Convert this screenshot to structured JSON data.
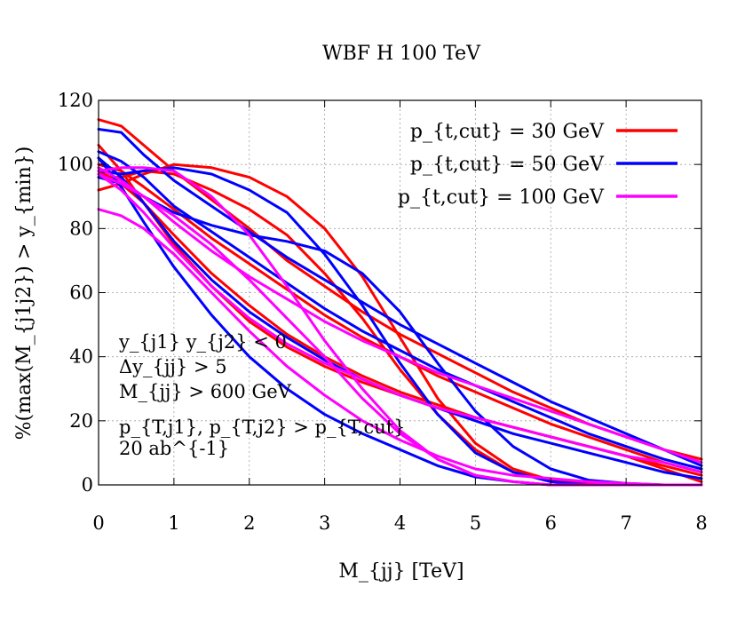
{
  "chart_data": {
    "type": "line",
    "title": "WBF H 100 TeV",
    "xlabel": "M_{jj} [TeV]",
    "ylabel": "%(max(M_{j1j2}) > y_{min})",
    "xlim": [
      0,
      8
    ],
    "ylim": [
      0,
      120
    ],
    "y_scale": "linear",
    "grid": true,
    "legend_position": "top-right",
    "x_ticks": [
      "0",
      "1",
      "2",
      "3",
      "4",
      "5",
      "6",
      "7",
      "8"
    ],
    "y_ticks": [
      "0",
      "20",
      "40",
      "60",
      "80",
      "100",
      "120"
    ],
    "annotations": [
      "y_{j1} y_{j2} < 0",
      "Δy_{jj} > 5",
      "M_{jj} > 600 GeV",
      "p_{T,j1}, p_{T,j2} > p_{T,cut}",
      "20 ab^{-1}"
    ],
    "colors": {
      "pt30": "#ff0000",
      "pt50": "#0000ff",
      "pt100": "#ff00ff"
    },
    "series": [
      {
        "name": "p_{t,cut} = 30 GeV",
        "color": "#ff0000",
        "x": [
          0,
          0.3,
          0.6,
          1,
          1.5,
          2,
          2.5,
          3,
          3.5,
          4,
          4.5,
          5,
          5.5,
          6,
          6.5,
          7,
          7.5,
          8
        ],
        "y": [
          114,
          112,
          106,
          98,
          89,
          80,
          70,
          62,
          54,
          47,
          41,
          35,
          29,
          24,
          19,
          15,
          11,
          8
        ]
      },
      {
        "name": "p_{t,cut} = 30 GeV",
        "color": "#ff0000",
        "x": [
          0,
          0.3,
          0.6,
          1,
          1.5,
          2,
          2.5,
          3,
          3.5,
          4,
          4.5,
          5,
          5.5,
          6,
          6.5,
          7,
          7.5,
          8
        ],
        "y": [
          100,
          98,
          93,
          86,
          77,
          69,
          61,
          53,
          46,
          40,
          34,
          29,
          24,
          19,
          15,
          11,
          7,
          4
        ]
      },
      {
        "name": "p_{t,cut} = 30 GeV",
        "color": "#ff0000",
        "x": [
          0,
          0.3,
          0.6,
          1,
          1.5,
          2,
          2.5,
          3,
          3.5,
          4,
          4.5,
          5,
          5.5,
          6,
          6.5,
          7,
          7.5,
          8
        ],
        "y": [
          98,
          94,
          88,
          78,
          66,
          56,
          47,
          40,
          34,
          29,
          25,
          21,
          18,
          15,
          12,
          9,
          6,
          3
        ]
      },
      {
        "name": "p_{t,cut} = 30 GeV",
        "color": "#ff0000",
        "x": [
          0,
          0.3,
          0.6,
          1,
          1.5,
          2,
          2.5,
          3,
          3.5,
          4,
          4.5,
          5,
          5.5,
          6,
          6.5,
          7,
          7.5,
          8
        ],
        "y": [
          106,
          98,
          88,
          75,
          62,
          51,
          43,
          37,
          32,
          28,
          24,
          21,
          18,
          15,
          12,
          9,
          5,
          1
        ]
      },
      {
        "name": "p_{t,cut} = 30 GeV",
        "color": "#ff0000",
        "x": [
          0,
          0.3,
          0.6,
          1,
          1.5,
          2,
          2.5,
          3,
          3.5,
          4,
          4.5,
          5,
          5.5,
          6,
          6.5,
          7,
          7.5,
          8
        ],
        "y": [
          92,
          94,
          97,
          100,
          99,
          96,
          90,
          80,
          65,
          46,
          27,
          13,
          5,
          1.5,
          0.5,
          0,
          0,
          0
        ]
      },
      {
        "name": "p_{t,cut} = 30 GeV",
        "color": "#ff0000",
        "x": [
          0,
          0.3,
          0.6,
          1,
          1.5,
          2,
          2.5,
          3,
          3.5,
          4,
          4.5,
          5,
          5.5,
          6,
          6.5,
          7,
          7.5,
          8
        ],
        "y": [
          96,
          96,
          98,
          97,
          92,
          86,
          78,
          66,
          52,
          36,
          22,
          11,
          4,
          1.5,
          0.5,
          0,
          0,
          0
        ]
      },
      {
        "name": "p_{t,cut} = 50 GeV",
        "color": "#0000ff",
        "x": [
          0,
          0.3,
          0.6,
          1,
          1.5,
          2,
          2.5,
          3,
          3.5,
          4,
          4.5,
          5,
          5.5,
          6,
          6.5,
          7,
          7.5,
          8
        ],
        "y": [
          111,
          110,
          103,
          95,
          87,
          79,
          71,
          64,
          57,
          50,
          44,
          38,
          32,
          26,
          21,
          16,
          11,
          6
        ]
      },
      {
        "name": "p_{t,cut} = 50 GeV",
        "color": "#0000ff",
        "x": [
          0,
          0.3,
          0.6,
          1,
          1.5,
          2,
          2.5,
          3,
          3.5,
          4,
          4.5,
          5,
          5.5,
          6,
          6.5,
          7,
          7.5,
          8
        ],
        "y": [
          104,
          101,
          96,
          87,
          79,
          71,
          63,
          55,
          48,
          42,
          36,
          31,
          26,
          21,
          16,
          12,
          8,
          5
        ]
      },
      {
        "name": "p_{t,cut} = 50 GeV",
        "color": "#0000ff",
        "x": [
          0,
          0.3,
          0.6,
          1,
          1.5,
          2,
          2.5,
          3,
          3.5,
          4,
          4.5,
          5,
          5.5,
          6,
          6.5,
          7,
          7.5,
          8
        ],
        "y": [
          102,
          96,
          88,
          76,
          64,
          54,
          46,
          39,
          33,
          28,
          24,
          20,
          16,
          13,
          10,
          7,
          4,
          2
        ]
      },
      {
        "name": "p_{t,cut} = 50 GeV",
        "color": "#0000ff",
        "x": [
          0,
          0.3,
          0.6,
          1,
          1.5,
          2,
          2.5,
          3,
          3.5,
          4,
          4.5,
          5,
          5.5,
          6,
          6.5,
          7,
          7.5,
          8
        ],
        "y": [
          96,
          94,
          90,
          85,
          81,
          78,
          76,
          73,
          66,
          54,
          38,
          23,
          12,
          5,
          1.5,
          0.5,
          0,
          0
        ]
      },
      {
        "name": "p_{t,cut} = 50 GeV",
        "color": "#0000ff",
        "x": [
          0,
          0.3,
          0.6,
          1,
          1.5,
          2,
          2.5,
          3,
          3.5,
          4,
          4.5,
          5,
          5.5,
          6,
          6.5,
          7,
          7.5,
          8
        ],
        "y": [
          102,
          93,
          82,
          68,
          53,
          40,
          30,
          22,
          16,
          11,
          6,
          2.5,
          1,
          0,
          0,
          0,
          0,
          0
        ]
      },
      {
        "name": "p_{t,cut} = 50 GeV",
        "color": "#0000ff",
        "x": [
          0,
          0.3,
          0.6,
          1,
          1.5,
          2,
          2.5,
          3,
          3.5,
          4,
          4.5,
          5,
          5.5,
          6,
          6.5,
          7,
          7.5,
          8
        ],
        "y": [
          98,
          97,
          98,
          99,
          97,
          92,
          85,
          72,
          56,
          38,
          22,
          10,
          4,
          1,
          0,
          0,
          0,
          0
        ]
      },
      {
        "name": "p_{t,cut} = 100 GeV",
        "color": "#ff00ff",
        "x": [
          0,
          0.3,
          0.6,
          1,
          1.5,
          2,
          2.5,
          3,
          3.5,
          4,
          4.5,
          5,
          5.5,
          6,
          6.5,
          7,
          7.5,
          8
        ],
        "y": [
          99,
          95,
          90,
          82,
          73,
          65,
          58,
          51,
          45,
          40,
          35,
          31,
          27,
          23,
          19,
          15,
          11,
          7
        ]
      },
      {
        "name": "p_{t,cut} = 100 GeV",
        "color": "#ff00ff",
        "x": [
          0,
          0.3,
          0.6,
          1,
          1.5,
          2,
          2.5,
          3,
          3.5,
          4,
          4.5,
          5,
          5.5,
          6,
          6.5,
          7,
          7.5,
          8
        ],
        "y": [
          97,
          92,
          85,
          74,
          62,
          52,
          44,
          38,
          33,
          28,
          24,
          21,
          18,
          15,
          12,
          9,
          7,
          4
        ]
      },
      {
        "name": "p_{t,cut} = 100 GeV",
        "color": "#ff00ff",
        "x": [
          0,
          0.3,
          0.6,
          1,
          1.5,
          2,
          2.5,
          3,
          3.5,
          4,
          4.5,
          5,
          5.5,
          6,
          6.5,
          7,
          7.5,
          8
        ],
        "y": [
          86,
          84,
          80,
          72,
          60,
          48,
          37,
          28,
          20,
          14,
          9,
          5,
          3,
          2,
          1,
          0.5,
          0,
          0
        ]
      },
      {
        "name": "p_{t,cut} = 100 GeV",
        "color": "#ff00ff",
        "x": [
          0,
          0.3,
          0.6,
          1,
          1.5,
          2,
          2.5,
          3,
          3.5,
          4,
          4.5,
          5,
          5.5,
          6,
          6.5,
          7,
          7.5,
          8
        ],
        "y": [
          97,
          94,
          90,
          84,
          75,
          64,
          52,
          40,
          27,
          16,
          8,
          3,
          1,
          0,
          0,
          0,
          0,
          0
        ]
      },
      {
        "name": "p_{t,cut} = 100 GeV",
        "color": "#ff00ff",
        "x": [
          0,
          0.3,
          0.6,
          1,
          1.5,
          2,
          2.5,
          3,
          3.5,
          4,
          4.5,
          5,
          5.5,
          6,
          6.5,
          7,
          7.5,
          8
        ],
        "y": [
          98,
          99,
          99,
          98,
          90,
          78,
          62,
          45,
          30,
          17,
          8,
          3,
          1,
          0,
          0,
          0,
          0,
          0
        ]
      }
    ],
    "legend": [
      {
        "label": "p_{t,cut} = 30 GeV",
        "color": "#ff0000"
      },
      {
        "label": "p_{t,cut} = 50 GeV",
        "color": "#0000ff"
      },
      {
        "label": "p_{t,cut} = 100 GeV",
        "color": "#ff00ff"
      }
    ]
  }
}
